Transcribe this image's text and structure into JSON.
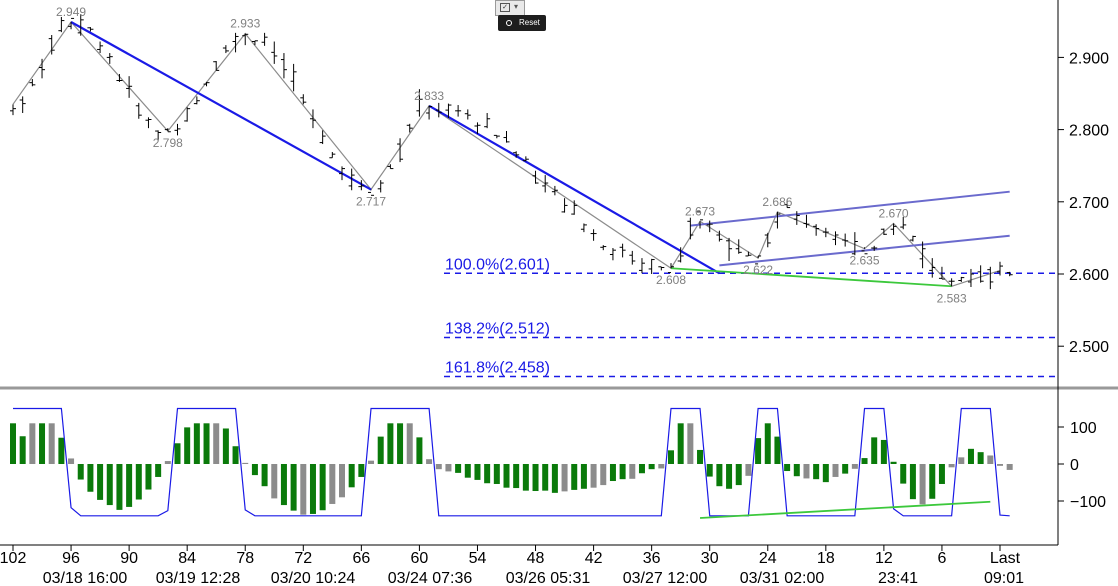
{
  "toolbar": {
    "reset_label": "Reset",
    "chart_icon": "chart-type-icon",
    "caret_icon": "dropdown-caret-icon"
  },
  "colors": {
    "bars": "#000000",
    "zigzag": "#8c8c8c",
    "trend": "#1a1ae6",
    "channel": "#6a6acd",
    "support": "#3cc83c",
    "fib": "#1a1ae6",
    "hist_pos": "#0a7a0a",
    "hist_neutral": "#8c8c8c",
    "oscillator": "#1a1ae6",
    "divider": "#999999"
  },
  "chart_data": [
    {
      "type": "ohlc",
      "y_axis_side": "right",
      "ylim": [
        2.46,
        2.98
      ],
      "y_ticks": [
        "2.900",
        "2.800",
        "2.700",
        "2.600",
        "2.500"
      ],
      "x_ticks": [
        "102",
        "96",
        "90",
        "84",
        "78",
        "72",
        "66",
        "60",
        "54",
        "48",
        "42",
        "36",
        "30",
        "24",
        "18",
        "12",
        "6",
        "Last"
      ],
      "date_labels": [
        "03/18 16:00",
        "03/19 12:28",
        "03/20 10:24",
        "03/24 07:36",
        "03/26 05:31",
        "03/27 12:00",
        "03/31 02:00",
        "23:41",
        "09:01"
      ],
      "swing_points": [
        {
          "label": "2.949",
          "value": 2.949,
          "bar": 96
        },
        {
          "label": "2.798",
          "value": 2.798,
          "bar": 86
        },
        {
          "label": "2.933",
          "value": 2.933,
          "bar": 78
        },
        {
          "label": "2.717",
          "value": 2.717,
          "bar": 65
        },
        {
          "label": "2.833",
          "value": 2.833,
          "bar": 59
        },
        {
          "label": "2.608",
          "value": 2.608,
          "bar": 34
        },
        {
          "label": "2.673",
          "value": 2.673,
          "bar": 31
        },
        {
          "label": "2.622",
          "value": 2.622,
          "bar": 25
        },
        {
          "label": "2.686",
          "value": 2.686,
          "bar": 23
        },
        {
          "label": "2.635",
          "value": 2.635,
          "bar": 14
        },
        {
          "label": "2.670",
          "value": 2.67,
          "bar": 11
        },
        {
          "label": "2.583",
          "value": 2.583,
          "bar": 5
        }
      ],
      "fib_levels": [
        {
          "label": "100.0%(2.601)",
          "value": 2.601
        },
        {
          "label": "138.2%(2.512)",
          "value": 2.512
        },
        {
          "label": "161.8%(2.458)",
          "value": 2.458
        }
      ],
      "trend_lines": [
        {
          "name": "downtrend-1",
          "from": [
            96,
            2.949
          ],
          "to": [
            65,
            2.717
          ]
        },
        {
          "name": "downtrend-2",
          "from": [
            59,
            2.833
          ],
          "to": [
            29,
            2.601
          ]
        }
      ],
      "channel_lines": [
        {
          "from": [
            32,
            2.667
          ],
          "to": [
            -1,
            2.714
          ]
        },
        {
          "from": [
            29,
            2.612
          ],
          "to": [
            -1,
            2.653
          ]
        }
      ],
      "support_line": {
        "from": [
          34,
          2.608
        ],
        "to": [
          5,
          2.583
        ]
      },
      "ohlc": []
    },
    {
      "type": "histogram",
      "ylim": [
        -180,
        180
      ],
      "y_ticks": [
        "100",
        "0",
        "−100"
      ],
      "histogram": [],
      "oscillator": []
    }
  ]
}
